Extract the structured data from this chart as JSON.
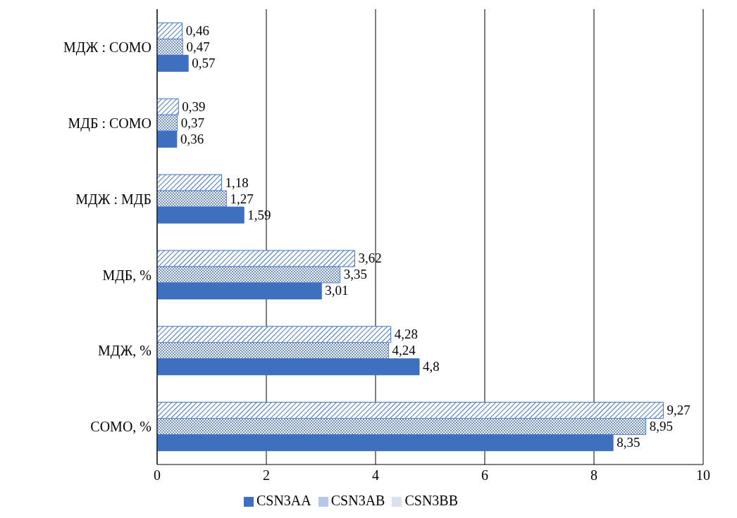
{
  "chart_data": {
    "type": "bar",
    "orientation": "horizontal",
    "categories": [
      "МДЖ : СОМО",
      "МДБ : СОМО",
      "МДЖ : МДБ",
      "МДБ, %",
      "МДЖ, %",
      "СОМО, %"
    ],
    "series": [
      {
        "name": "CSN3BB",
        "color": "#4472c4",
        "values": [
          0.46,
          0.39,
          1.18,
          3.62,
          4.28,
          9.27
        ],
        "value_labels": [
          "0,46",
          "0,39",
          "1,18",
          "3,62",
          "4,28",
          "9,27"
        ]
      },
      {
        "name": "CSN3AB",
        "color": "#5b82c9",
        "values": [
          0.47,
          0.37,
          1.27,
          3.35,
          4.24,
          8.95
        ],
        "value_labels": [
          "0,47",
          "0,37",
          "1,27",
          "3,35",
          "4,24",
          "8,95"
        ]
      },
      {
        "name": "CSN3AA",
        "color": "#3f6fbf",
        "values": [
          0.57,
          0.36,
          1.59,
          3.01,
          4.8,
          8.35
        ],
        "value_labels": [
          "0,57",
          "0,36",
          "1,59",
          "3,01",
          "4,8",
          "8,35"
        ]
      }
    ],
    "xlim": [
      0,
      10
    ],
    "xticks": [
      0,
      2,
      4,
      6,
      8,
      10
    ],
    "grid": "x",
    "legend": "bottom"
  }
}
